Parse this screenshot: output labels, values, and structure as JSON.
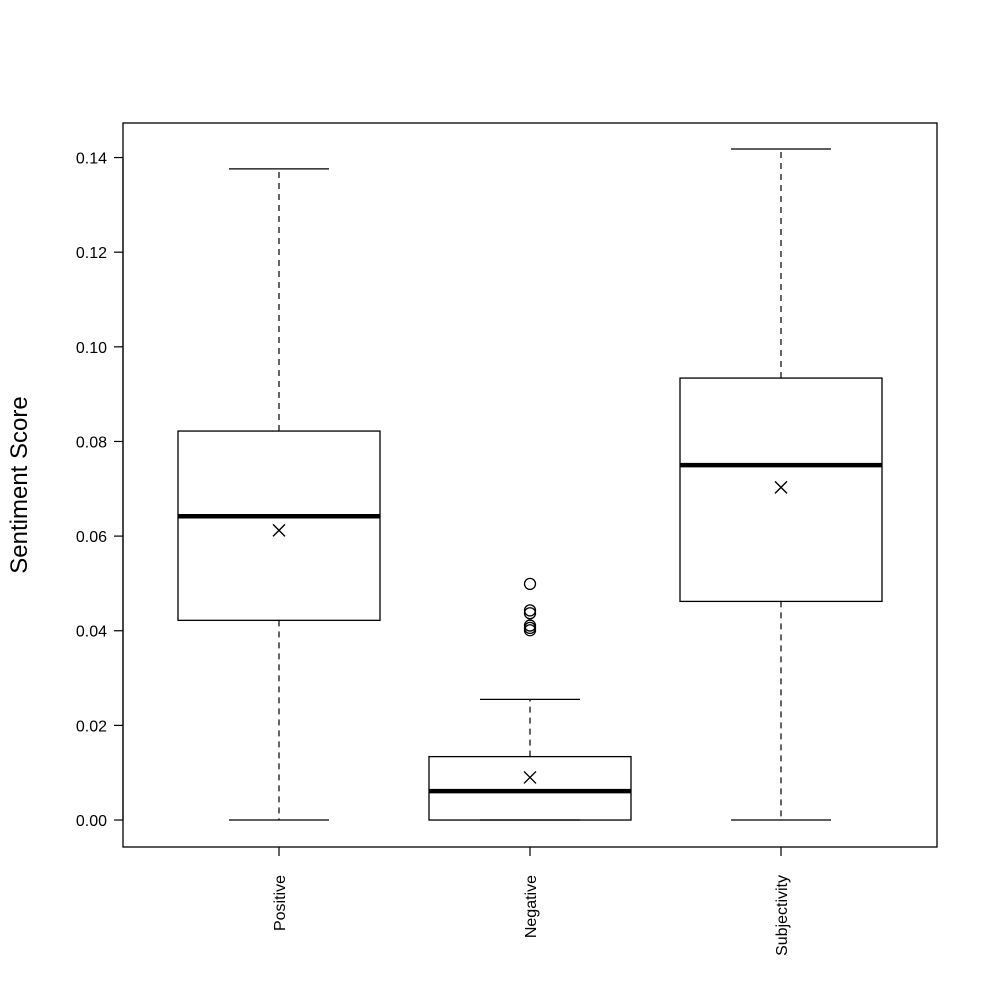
{
  "chart_data": {
    "type": "boxplot",
    "ylabel": "Sentiment Score",
    "ylim": [
      -0.0057,
      0.1473
    ],
    "yticks": [
      "0.00",
      "0.02",
      "0.04",
      "0.06",
      "0.08",
      "0.10",
      "0.12",
      "0.14"
    ],
    "grid": false,
    "legend": "none",
    "categories": [
      "Positive",
      "Negative",
      "Subjectivity"
    ],
    "boxes": [
      {
        "name": "Positive",
        "whisker_low": 0.0,
        "q1": 0.0422,
        "median": 0.0642,
        "q3": 0.0822,
        "whisker_high": 0.1376,
        "mean": 0.0612,
        "outliers": []
      },
      {
        "name": "Negative",
        "whisker_low": 0.0,
        "q1": 0.0,
        "median": 0.0061,
        "q3": 0.0134,
        "whisker_high": 0.0255,
        "mean": 0.009,
        "outliers": [
          0.0499,
          0.0443,
          0.0437,
          0.0411,
          0.0406,
          0.0401
        ]
      },
      {
        "name": "Subjectivity",
        "whisker_low": 0.0,
        "q1": 0.0462,
        "median": 0.075,
        "q3": 0.0934,
        "whisker_high": 0.1418,
        "mean": 0.0703,
        "outliers": []
      }
    ],
    "colors": {
      "stroke": "#000000",
      "background": "#ffffff"
    }
  }
}
